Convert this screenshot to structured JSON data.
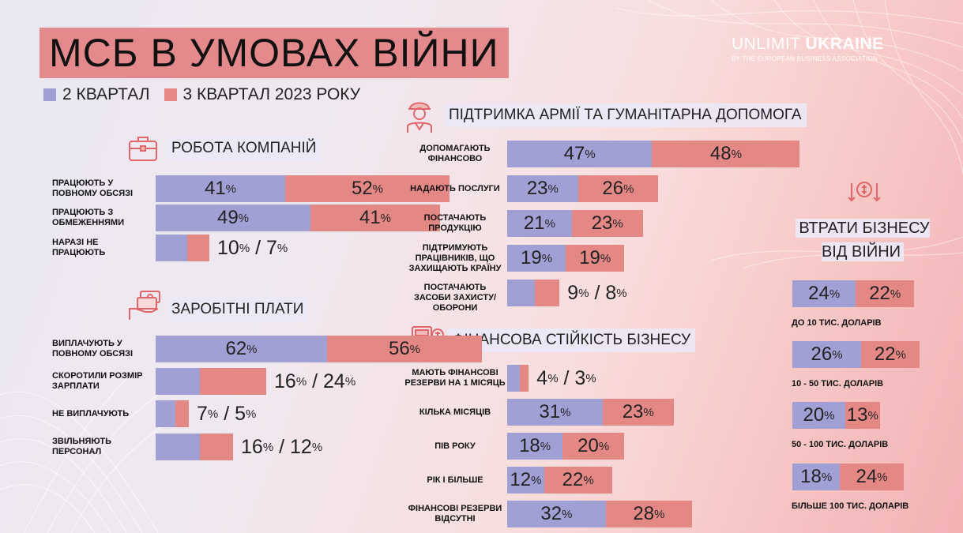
{
  "title": "МСБ В УМОВАХ ВІЙНИ",
  "legend": [
    {
      "label": "2 КВАРТАЛ",
      "color": "#a1a0d5"
    },
    {
      "label": "3 КВАРТАЛ 2023 РОКУ",
      "color": "#e48886"
    }
  ],
  "logo": {
    "brand_light": "UNLIMIT",
    "brand_bold": "UKRAINE",
    "tagline": "BY THE EUROPEAN BUSINESS ASSOCIATION"
  },
  "colors": {
    "q2": "#a1a0d5",
    "q3": "#e48886"
  },
  "chart_data": [
    {
      "type": "bar",
      "title": "РОБОТА КОМПАНІЙ",
      "icon": "briefcase-icon",
      "categories": [
        "ПРАЦЮЮТЬ У ПОВНОМУ ОБСЯЗІ",
        "ПРАЦЮЮТЬ З ОБМЕЖЕННЯМИ",
        "НАРАЗІ НЕ ПРАЦЮЮТЬ"
      ],
      "series": [
        {
          "name": "2 КВАРТАЛ",
          "values": [
            41,
            49,
            10
          ]
        },
        {
          "name": "3 КВАРТАЛ 2023 РОКУ",
          "values": [
            52,
            41,
            7
          ]
        }
      ]
    },
    {
      "type": "bar",
      "title": "ЗАРОБІТНІ ПЛАТИ",
      "icon": "money-hand-icon",
      "categories": [
        "ВИПЛАЧУЮТЬ У ПОВНОМУ ОБСЯЗІ",
        "СКОРОТИЛИ РОЗМІР ЗАРПЛАТИ",
        "НЕ ВИПЛАЧУЮТЬ",
        "ЗВІЛЬНЯЮТЬ ПЕРСОНАЛ"
      ],
      "series": [
        {
          "name": "2 КВАРТАЛ",
          "values": [
            62,
            16,
            7,
            16
          ]
        },
        {
          "name": "3 КВАРТАЛ 2023 РОКУ",
          "values": [
            56,
            24,
            5,
            12
          ]
        }
      ]
    },
    {
      "type": "bar",
      "title": "ПІДТРИМКА АРМІЇ ТА ГУМАНІТАРНА ДОПОМОГА",
      "icon": "soldier-icon",
      "categories": [
        "ДОПОМАГАЮТЬ ФІНАНСОВО",
        "НАДАЮТЬ ПОСЛУГИ",
        "ПОСТАЧАЮТЬ ПРОДУКЦІЮ",
        "ПІДТРИМУЮТЬ ПРАЦІВНИКІВ, ЩО ЗАХИЩАЮТЬ КРАЇНУ",
        "ПОСТАЧАЮТЬ ЗАСОБИ ЗАХИСТУ/ОБОРОНИ"
      ],
      "series": [
        {
          "name": "2 КВАРТАЛ",
          "values": [
            47,
            23,
            21,
            19,
            9
          ]
        },
        {
          "name": "3 КВАРТАЛ 2023 РОКУ",
          "values": [
            48,
            26,
            23,
            19,
            8
          ]
        }
      ]
    },
    {
      "type": "bar",
      "title": "ФІНАНСОВА СТІЙКІСТЬ БІЗНЕСУ",
      "icon": "calculator-icon",
      "categories": [
        "МАЮТЬ ФІНАНСОВІ РЕЗЕРВИ НА 1 МІСЯЦЬ",
        "КІЛЬКА МІСЯЦІВ",
        "ПІВ РОКУ",
        "РІК І БІЛЬШЕ",
        "ФІНАНСОВІ РЕЗЕРВИ ВІДСУТНІ"
      ],
      "series": [
        {
          "name": "2 КВАРТАЛ",
          "values": [
            4,
            31,
            18,
            12,
            32
          ]
        },
        {
          "name": "3 КВАРТАЛ 2023 РОКУ",
          "values": [
            3,
            23,
            20,
            22,
            28
          ]
        }
      ]
    },
    {
      "type": "bar",
      "title": "ВТРАТИ БІЗНЕСУ ВІД ВІЙНИ",
      "icon": "money-loss-icon",
      "categories": [
        "ДО 10 ТИС. ДОЛАРІВ",
        "10 - 50 ТИС. ДОЛАРІВ",
        "50 - 100 ТИС. ДОЛАРІВ",
        "БІЛЬШЕ 100 ТИС. ДОЛАРІВ"
      ],
      "series": [
        {
          "name": "2 КВАРТАЛ",
          "values": [
            24,
            26,
            20,
            18
          ]
        },
        {
          "name": "3 КВАРТАЛ 2023 РОКУ",
          "values": [
            22,
            22,
            13,
            24
          ]
        }
      ]
    }
  ]
}
